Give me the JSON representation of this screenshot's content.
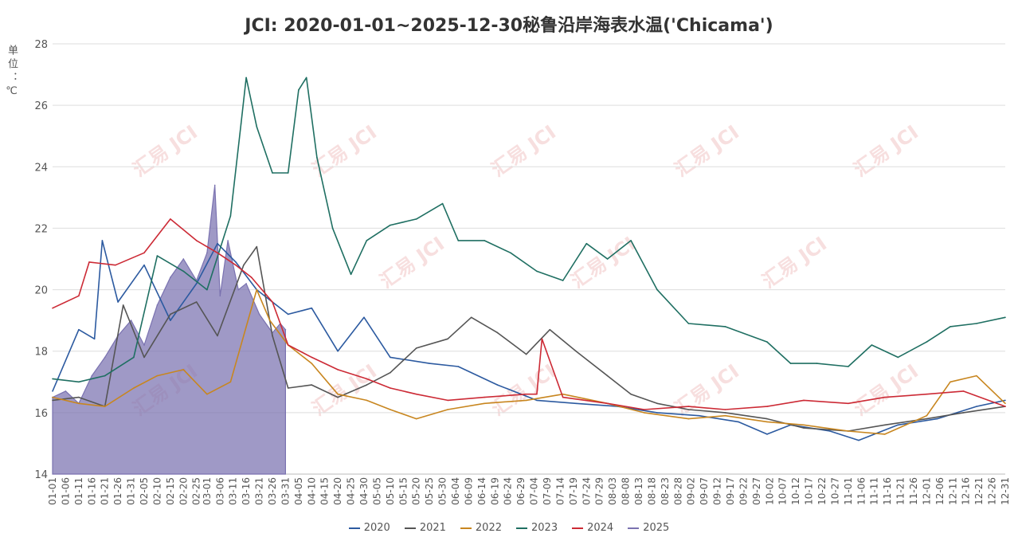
{
  "title": "JCI: 2020-01-01~2025-12-30秘鲁沿岸海表水温('Chicama')",
  "unit_label": "单位：℃",
  "watermark": "汇易 JCI",
  "colors": {
    "2020": "#2c5aa0",
    "2021": "#555555",
    "2022": "#c8861f",
    "2023": "#1f6f62",
    "2024": "#cc2a35",
    "2025": "#7a72b0"
  },
  "chart_data": {
    "type": "line",
    "title": "JCI: 2020-01-01~2025-12-30秘鲁沿岸海表水温('Chicama')",
    "ylabel": "单位：℃",
    "ylim": [
      14,
      28
    ],
    "yticks": [
      14,
      16,
      18,
      20,
      22,
      24,
      26,
      28
    ],
    "xlim_day": [
      1,
      365
    ],
    "grid": "horizontal",
    "legend": "bottom",
    "xticks": [
      "01-01",
      "01-06",
      "01-11",
      "01-16",
      "01-21",
      "01-26",
      "01-31",
      "02-05",
      "02-10",
      "02-15",
      "02-20",
      "02-25",
      "03-01",
      "03-06",
      "03-11",
      "03-16",
      "03-21",
      "03-26",
      "03-31",
      "04-05",
      "04-10",
      "04-15",
      "04-20",
      "04-25",
      "04-30",
      "05-05",
      "05-10",
      "05-15",
      "05-20",
      "05-25",
      "05-30",
      "06-04",
      "06-09",
      "06-14",
      "06-19",
      "06-24",
      "06-29",
      "07-04",
      "07-09",
      "07-14",
      "07-19",
      "07-24",
      "07-29",
      "08-03",
      "08-08",
      "08-13",
      "08-18",
      "08-23",
      "08-28",
      "09-02",
      "09-07",
      "09-12",
      "09-17",
      "09-22",
      "09-27",
      "10-02",
      "10-07",
      "10-12",
      "10-17",
      "10-22",
      "10-27",
      "11-01",
      "11-06",
      "11-11",
      "11-16",
      "11-21",
      "11-26",
      "12-01",
      "12-06",
      "12-11",
      "12-16",
      "12-21",
      "12-26",
      "12-31"
    ],
    "series": [
      {
        "name": "2020",
        "style": "line",
        "x": [
          "01-01",
          "01-11",
          "01-17",
          "01-20",
          "01-26",
          "02-05",
          "02-15",
          "02-25",
          "03-05",
          "03-12",
          "03-20",
          "04-01",
          "04-10",
          "04-20",
          "04-30",
          "05-10",
          "05-25",
          "06-05",
          "06-20",
          "07-05",
          "07-20",
          "08-05",
          "08-20",
          "09-05",
          "09-20",
          "10-01",
          "10-10",
          "10-25",
          "11-05",
          "11-20",
          "12-05",
          "12-20",
          "12-31"
        ],
        "values": [
          16.7,
          18.7,
          18.4,
          21.6,
          19.6,
          20.8,
          19.0,
          20.2,
          21.5,
          20.9,
          20.0,
          19.2,
          19.4,
          18.0,
          19.1,
          17.8,
          17.6,
          17.5,
          16.9,
          16.4,
          16.3,
          16.2,
          16.0,
          15.9,
          15.7,
          15.3,
          15.6,
          15.4,
          15.1,
          15.6,
          15.8,
          16.2,
          16.4
        ]
      },
      {
        "name": "2021",
        "style": "line",
        "x": [
          "01-01",
          "01-11",
          "01-21",
          "01-28",
          "02-05",
          "02-15",
          "02-25",
          "03-05",
          "03-15",
          "03-20",
          "03-26",
          "04-01",
          "04-10",
          "04-20",
          "05-01",
          "05-10",
          "05-20",
          "06-01",
          "06-10",
          "06-20",
          "07-01",
          "07-10",
          "07-20",
          "08-01",
          "08-10",
          "08-20",
          "09-01",
          "09-15",
          "10-01",
          "10-15",
          "11-01",
          "11-15",
          "12-01",
          "12-15",
          "12-31"
        ],
        "values": [
          16.4,
          16.5,
          16.2,
          19.5,
          17.8,
          19.2,
          19.6,
          18.5,
          20.8,
          21.4,
          18.5,
          16.8,
          16.9,
          16.5,
          16.9,
          17.3,
          18.1,
          18.4,
          19.1,
          18.6,
          17.9,
          18.7,
          18.0,
          17.2,
          16.6,
          16.3,
          16.1,
          16.0,
          15.8,
          15.5,
          15.4,
          15.6,
          15.8,
          16.0,
          16.2
        ]
      },
      {
        "name": "2022",
        "style": "line",
        "x": [
          "01-01",
          "01-11",
          "01-21",
          "02-01",
          "02-10",
          "02-20",
          "03-01",
          "03-10",
          "03-20",
          "03-25",
          "04-01",
          "04-10",
          "04-20",
          "05-01",
          "05-10",
          "05-20",
          "06-01",
          "06-15",
          "07-01",
          "07-15",
          "08-01",
          "08-15",
          "09-01",
          "09-15",
          "10-01",
          "10-15",
          "11-01",
          "11-15",
          "12-01",
          "12-10",
          "12-20",
          "12-31"
        ],
        "values": [
          16.5,
          16.3,
          16.2,
          16.8,
          17.2,
          17.4,
          16.6,
          17.0,
          20.0,
          19.0,
          18.2,
          17.6,
          16.6,
          16.4,
          16.1,
          15.8,
          16.1,
          16.3,
          16.4,
          16.6,
          16.3,
          16.0,
          15.8,
          15.9,
          15.7,
          15.6,
          15.4,
          15.3,
          15.9,
          17.0,
          17.2,
          16.3
        ]
      },
      {
        "name": "2023",
        "style": "line",
        "x": [
          "01-01",
          "01-11",
          "01-21",
          "02-01",
          "02-10",
          "02-20",
          "03-01",
          "03-10",
          "03-14",
          "03-16",
          "03-20",
          "03-26",
          "04-01",
          "04-05",
          "04-08",
          "04-12",
          "04-18",
          "04-25",
          "05-01",
          "05-10",
          "05-20",
          "05-30",
          "06-05",
          "06-15",
          "06-25",
          "07-05",
          "07-15",
          "07-24",
          "08-01",
          "08-10",
          "08-20",
          "09-01",
          "09-15",
          "10-01",
          "10-10",
          "10-20",
          "11-01",
          "11-10",
          "11-20",
          "12-01",
          "12-10",
          "12-20",
          "12-31"
        ],
        "values": [
          17.1,
          17.0,
          17.2,
          17.8,
          21.1,
          20.6,
          20.0,
          22.4,
          25.4,
          26.9,
          25.3,
          23.8,
          23.8,
          26.5,
          26.9,
          24.3,
          22.0,
          20.5,
          21.6,
          22.1,
          22.3,
          22.8,
          21.6,
          21.6,
          21.2,
          20.6,
          20.3,
          21.5,
          21.0,
          21.6,
          20.0,
          18.9,
          18.8,
          18.3,
          17.6,
          17.6,
          17.5,
          18.2,
          17.8,
          18.3,
          18.8,
          18.9,
          19.1
        ]
      },
      {
        "name": "2024",
        "style": "line",
        "x": [
          "01-01",
          "01-11",
          "01-15",
          "01-25",
          "02-05",
          "02-15",
          "02-25",
          "03-05",
          "03-12",
          "03-18",
          "03-26",
          "04-01",
          "04-10",
          "04-20",
          "05-01",
          "05-10",
          "05-20",
          "06-01",
          "06-15",
          "07-01",
          "07-05",
          "07-07",
          "07-15",
          "08-01",
          "08-15",
          "09-01",
          "09-15",
          "10-01",
          "10-15",
          "11-01",
          "11-15",
          "12-01",
          "12-15",
          "12-31"
        ],
        "values": [
          19.4,
          19.8,
          20.9,
          20.8,
          21.2,
          22.3,
          21.6,
          21.2,
          20.8,
          20.4,
          19.6,
          18.2,
          17.8,
          17.4,
          17.1,
          16.8,
          16.6,
          16.4,
          16.5,
          16.6,
          16.6,
          18.4,
          16.5,
          16.3,
          16.1,
          16.2,
          16.1,
          16.2,
          16.4,
          16.3,
          16.5,
          16.6,
          16.7,
          16.2
        ]
      },
      {
        "name": "2025",
        "style": "area",
        "x": [
          "01-01",
          "01-06",
          "01-11",
          "01-16",
          "01-21",
          "01-26",
          "01-31",
          "02-05",
          "02-10",
          "02-15",
          "02-20",
          "02-25",
          "03-01",
          "03-04",
          "03-06",
          "03-09",
          "03-13",
          "03-16",
          "03-21",
          "03-26",
          "03-29",
          "03-31"
        ],
        "values": [
          16.5,
          16.7,
          16.3,
          17.2,
          17.8,
          18.5,
          19.0,
          18.2,
          19.5,
          20.4,
          21.0,
          20.3,
          21.2,
          23.4,
          19.8,
          21.6,
          20.0,
          20.2,
          19.2,
          18.6,
          18.9,
          18.7
        ]
      }
    ]
  }
}
